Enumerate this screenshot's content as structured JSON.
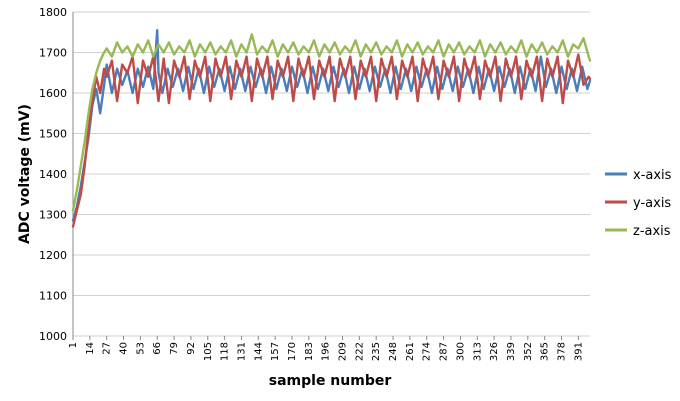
{
  "chart_data": {
    "type": "line",
    "xlabel": "sample number",
    "ylabel": "ADC voltage (mV)",
    "ylim": [
      1000,
      1800
    ],
    "yticks": [
      1000,
      1100,
      1200,
      1300,
      1400,
      1500,
      1600,
      1700,
      1800
    ],
    "xlim": [
      1,
      400
    ],
    "xtick_labels": [
      1,
      14,
      27,
      40,
      53,
      66,
      79,
      92,
      105,
      118,
      131,
      144,
      157,
      170,
      183,
      196,
      209,
      222,
      235,
      248,
      261,
      274,
      287,
      300,
      313,
      326,
      339,
      352,
      365,
      378,
      391
    ],
    "grid": "horizontal",
    "legend": "right",
    "series": [
      {
        "name": "x-axis",
        "color": "#4a7ebb",
        "x": [
          1,
          4,
          7,
          10,
          13,
          16,
          19,
          22,
          25,
          27,
          31,
          35,
          39,
          43,
          47,
          51,
          55,
          59,
          63,
          66,
          67,
          70,
          74,
          78,
          82,
          86,
          90,
          94,
          98,
          102,
          106,
          110,
          114,
          118,
          122,
          126,
          130,
          134,
          138,
          142,
          146,
          150,
          154,
          158,
          162,
          166,
          170,
          174,
          178,
          182,
          186,
          190,
          194,
          198,
          202,
          206,
          210,
          214,
          218,
          222,
          226,
          230,
          234,
          238,
          242,
          246,
          250,
          254,
          258,
          262,
          266,
          270,
          274,
          278,
          282,
          286,
          290,
          294,
          298,
          302,
          306,
          310,
          314,
          318,
          322,
          326,
          330,
          334,
          338,
          342,
          346,
          350,
          354,
          358,
          362,
          366,
          370,
          374,
          378,
          382,
          386,
          390,
          394,
          398,
          400
        ],
        "y": [
          1285,
          1320,
          1370,
          1430,
          1490,
          1570,
          1610,
          1550,
          1620,
          1670,
          1600,
          1660,
          1620,
          1655,
          1600,
          1660,
          1615,
          1665,
          1610,
          1755,
          1650,
          1600,
          1660,
          1615,
          1660,
          1605,
          1665,
          1610,
          1660,
          1600,
          1665,
          1615,
          1660,
          1605,
          1665,
          1610,
          1660,
          1605,
          1665,
          1615,
          1660,
          1600,
          1665,
          1610,
          1660,
          1605,
          1665,
          1615,
          1660,
          1600,
          1665,
          1610,
          1660,
          1605,
          1665,
          1615,
          1660,
          1600,
          1665,
          1610,
          1660,
          1605,
          1665,
          1615,
          1660,
          1600,
          1665,
          1610,
          1660,
          1605,
          1665,
          1615,
          1660,
          1600,
          1665,
          1610,
          1660,
          1605,
          1665,
          1615,
          1660,
          1600,
          1665,
          1610,
          1660,
          1605,
          1665,
          1615,
          1660,
          1600,
          1665,
          1610,
          1660,
          1605,
          1690,
          1615,
          1660,
          1600,
          1665,
          1610,
          1660,
          1605,
          1665,
          1610,
          1630
        ]
      },
      {
        "name": "y-axis",
        "color": "#be4b48",
        "x": [
          1,
          4,
          7,
          10,
          13,
          16,
          19,
          22,
          25,
          27,
          31,
          35,
          39,
          43,
          47,
          51,
          55,
          59,
          63,
          67,
          71,
          75,
          79,
          83,
          87,
          91,
          95,
          99,
          103,
          107,
          111,
          115,
          119,
          123,
          127,
          131,
          135,
          139,
          143,
          147,
          151,
          155,
          159,
          163,
          167,
          171,
          175,
          179,
          183,
          187,
          191,
          195,
          199,
          203,
          207,
          211,
          215,
          219,
          223,
          227,
          231,
          235,
          239,
          243,
          247,
          251,
          255,
          259,
          263,
          267,
          271,
          275,
          279,
          283,
          287,
          291,
          295,
          299,
          303,
          307,
          311,
          315,
          319,
          323,
          327,
          331,
          335,
          339,
          343,
          347,
          351,
          355,
          359,
          363,
          367,
          371,
          375,
          379,
          383,
          387,
          391,
          395,
          399,
          400
        ],
        "y": [
          1270,
          1310,
          1350,
          1420,
          1510,
          1580,
          1640,
          1600,
          1660,
          1640,
          1680,
          1580,
          1670,
          1650,
          1690,
          1575,
          1680,
          1640,
          1690,
          1580,
          1685,
          1575,
          1680,
          1640,
          1690,
          1585,
          1680,
          1640,
          1690,
          1580,
          1685,
          1640,
          1690,
          1585,
          1680,
          1640,
          1690,
          1580,
          1685,
          1640,
          1690,
          1585,
          1680,
          1640,
          1690,
          1580,
          1685,
          1640,
          1690,
          1585,
          1680,
          1640,
          1690,
          1580,
          1685,
          1640,
          1690,
          1585,
          1680,
          1640,
          1690,
          1580,
          1685,
          1640,
          1690,
          1585,
          1680,
          1640,
          1690,
          1580,
          1685,
          1640,
          1690,
          1585,
          1680,
          1640,
          1690,
          1580,
          1685,
          1640,
          1690,
          1585,
          1680,
          1640,
          1690,
          1580,
          1685,
          1640,
          1690,
          1585,
          1680,
          1640,
          1690,
          1580,
          1685,
          1640,
          1690,
          1575,
          1680,
          1640,
          1695,
          1620,
          1640,
          1635
        ]
      },
      {
        "name": "z-axis",
        "color": "#98b954",
        "x": [
          1,
          4,
          7,
          10,
          13,
          16,
          19,
          22,
          25,
          27,
          31,
          35,
          39,
          43,
          47,
          51,
          55,
          59,
          63,
          67,
          71,
          75,
          79,
          83,
          87,
          91,
          95,
          99,
          103,
          107,
          111,
          115,
          119,
          123,
          127,
          131,
          135,
          139,
          143,
          147,
          151,
          155,
          159,
          163,
          167,
          171,
          175,
          179,
          183,
          187,
          191,
          195,
          199,
          203,
          207,
          211,
          215,
          219,
          223,
          227,
          231,
          235,
          239,
          243,
          247,
          251,
          255,
          259,
          263,
          267,
          271,
          275,
          279,
          283,
          287,
          291,
          295,
          299,
          303,
          307,
          311,
          315,
          319,
          323,
          327,
          331,
          335,
          339,
          343,
          347,
          351,
          355,
          359,
          363,
          367,
          371,
          375,
          379,
          383,
          387,
          391,
          395,
          399,
          400
        ],
        "y": [
          1310,
          1360,
          1420,
          1480,
          1550,
          1610,
          1650,
          1680,
          1700,
          1710,
          1690,
          1725,
          1700,
          1715,
          1690,
          1720,
          1700,
          1730,
          1690,
          1720,
          1700,
          1725,
          1695,
          1715,
          1700,
          1730,
          1690,
          1720,
          1700,
          1725,
          1695,
          1715,
          1700,
          1730,
          1690,
          1720,
          1700,
          1745,
          1695,
          1715,
          1700,
          1730,
          1690,
          1720,
          1700,
          1725,
          1695,
          1715,
          1700,
          1730,
          1690,
          1720,
          1700,
          1725,
          1695,
          1715,
          1700,
          1730,
          1690,
          1720,
          1700,
          1725,
          1695,
          1715,
          1700,
          1730,
          1690,
          1720,
          1700,
          1725,
          1695,
          1715,
          1700,
          1730,
          1690,
          1720,
          1700,
          1725,
          1695,
          1715,
          1700,
          1730,
          1690,
          1720,
          1700,
          1725,
          1695,
          1715,
          1700,
          1730,
          1690,
          1720,
          1700,
          1725,
          1695,
          1715,
          1700,
          1730,
          1690,
          1720,
          1710,
          1735,
          1690,
          1680
        ]
      }
    ]
  }
}
